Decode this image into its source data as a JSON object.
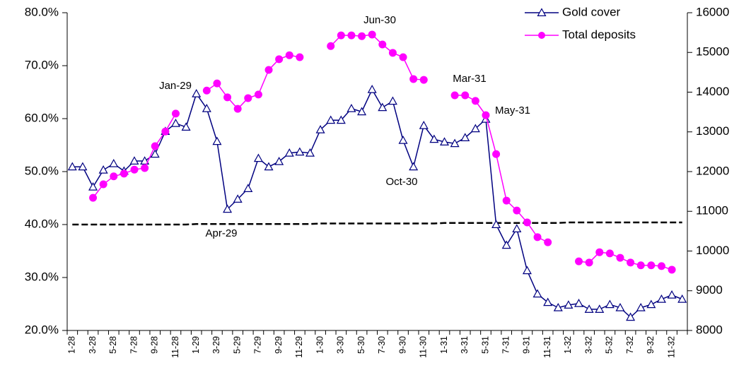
{
  "chart_data": {
    "type": "line",
    "categories": [
      "1-28",
      null,
      "3-28",
      null,
      "5-28",
      null,
      "7-28",
      null,
      "9-28",
      null,
      "11-28",
      null,
      "1-29",
      null,
      "3-29",
      null,
      "5-29",
      null,
      "7-29",
      null,
      "9-29",
      null,
      "11-29",
      null,
      "1-30",
      null,
      "3-30",
      null,
      "5-30",
      null,
      "7-30",
      null,
      "9-30",
      null,
      "11-30",
      null,
      "1-31",
      null,
      "3-31",
      null,
      "5-31",
      null,
      "7-31",
      null,
      "9-31",
      null,
      "11-31",
      null,
      "1-32",
      null,
      "3-32",
      null,
      "5-32",
      null,
      "7-32",
      null,
      "9-32",
      null,
      "11-32",
      null
    ],
    "series": [
      {
        "name": "Gold cover",
        "color": "#000080",
        "marker": "triangle",
        "values": [
          50.9,
          50.9,
          47.1,
          50.3,
          51.5,
          50.1,
          52.0,
          52.0,
          53.3,
          57.6,
          59.1,
          58.4,
          64.7,
          61.9,
          55.7,
          42.9,
          44.8,
          46.8,
          52.5,
          50.9,
          51.9,
          53.5,
          53.7,
          53.5,
          57.9,
          59.7,
          59.7,
          61.9,
          61.3,
          65.5,
          62.1,
          63.3,
          55.9,
          50.9,
          58.7,
          56.1,
          55.6,
          55.3,
          56.4,
          58.1,
          59.9,
          40.0,
          36.1,
          39.2,
          31.3,
          26.9,
          25.3,
          24.3,
          24.8,
          25.1,
          24.0,
          24.0,
          24.9,
          24.3,
          22.5,
          24.3,
          24.9,
          25.9,
          26.7,
          25.9
        ]
      },
      {
        "name": "Total deposits",
        "color": "#ff00ff",
        "marker": "circle",
        "axis": "y2",
        "values": [
          null,
          null,
          11340,
          11680,
          11880,
          11950,
          12050,
          12090,
          12640,
          13010,
          13460,
          null,
          null,
          14040,
          14220,
          13870,
          13580,
          13850,
          13940,
          14560,
          14830,
          14930,
          14880,
          null,
          null,
          15160,
          15430,
          15430,
          15410,
          15450,
          15200,
          14990,
          14880,
          14330,
          14310,
          null,
          null,
          13920,
          13920,
          13780,
          13420,
          12440,
          11270,
          11020,
          10720,
          10350,
          10220,
          null,
          null,
          9740,
          9710,
          9970,
          9940,
          9830,
          9710,
          9640,
          9640,
          9620,
          9530,
          null
        ]
      },
      {
        "color": "#000000",
        "marker": "none",
        "dash": true,
        "values": [
          40.0,
          40.0,
          40.0,
          40.0,
          40.0,
          40.0,
          40.0,
          40.0,
          40.0,
          40.0,
          40.0,
          40.0,
          40.1,
          40.1,
          40.1,
          40.1,
          40.1,
          40.1,
          40.1,
          40.1,
          40.1,
          40.1,
          40.1,
          40.1,
          40.2,
          40.2,
          40.2,
          40.2,
          40.2,
          40.2,
          40.2,
          40.2,
          40.2,
          40.2,
          40.2,
          40.2,
          40.3,
          40.3,
          40.3,
          40.3,
          40.3,
          40.3,
          40.3,
          40.3,
          40.3,
          40.3,
          40.3,
          40.3,
          40.4,
          40.4,
          40.4,
          40.4,
          40.4,
          40.4,
          40.4,
          40.4,
          40.4,
          40.4,
          40.4,
          40.4
        ]
      }
    ],
    "ylim": [
      20,
      80
    ],
    "yticks": [
      {
        "value": 20,
        "label": "20.0%"
      },
      {
        "value": 30,
        "label": "30.0%"
      },
      {
        "value": 40,
        "label": "40.0%"
      },
      {
        "value": 50,
        "label": "50.0%"
      },
      {
        "value": 60,
        "label": "60.0%"
      },
      {
        "value": 70,
        "label": "70.0%"
      },
      {
        "value": 80,
        "label": "80.0%"
      }
    ],
    "y2lim": [
      8000,
      16000
    ],
    "y2ticks": [
      8000,
      9000,
      10000,
      11000,
      12000,
      13000,
      14000,
      15000,
      16000
    ],
    "annotations": [
      "Jan-29",
      "Apr-29",
      "Jun-30",
      "Oct-30",
      "Mar-31",
      "May-31"
    ],
    "legend": "upper right",
    "grid": false
  }
}
